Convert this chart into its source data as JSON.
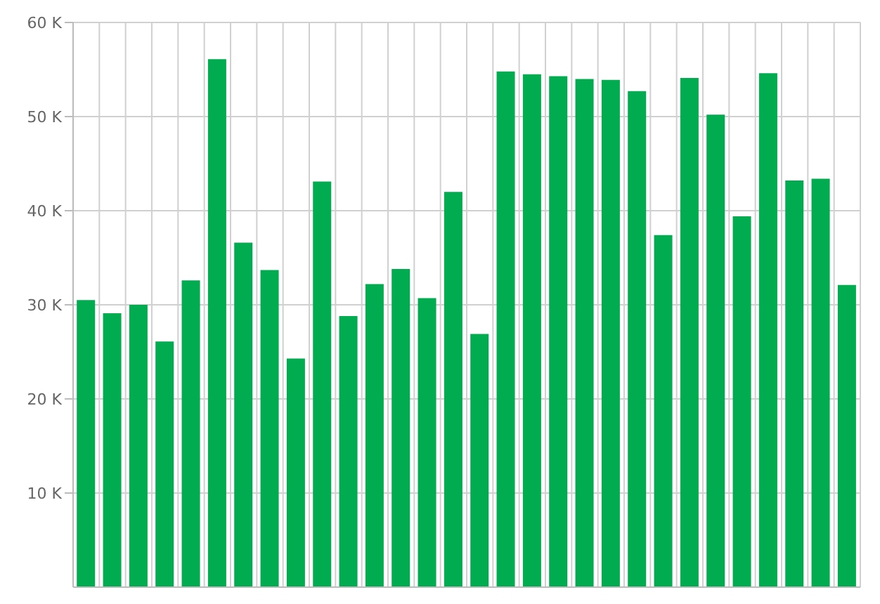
{
  "chart_data": {
    "type": "bar",
    "categories": [
      null,
      null,
      null,
      null,
      null,
      null,
      null,
      null,
      null,
      null,
      null,
      null,
      null,
      null,
      null,
      null,
      null,
      null,
      null,
      null,
      null,
      null,
      null,
      null,
      null,
      null,
      null,
      null,
      null,
      null
    ],
    "values": [
      30500,
      29100,
      30000,
      26100,
      32600,
      56100,
      36600,
      33700,
      24300,
      43100,
      28800,
      32200,
      33800,
      30700,
      42000,
      26900,
      54800,
      54500,
      54300,
      54000,
      53900,
      52700,
      37400,
      54100,
      50200,
      39400,
      54600,
      43200,
      43400,
      32100
    ],
    "color": "#00ac4f",
    "ylim": [
      0,
      60000
    ],
    "yticks": [
      {
        "value": 10000,
        "label": "10 K"
      },
      {
        "value": 20000,
        "label": "20 K"
      },
      {
        "value": 30000,
        "label": "30 K"
      },
      {
        "value": 40000,
        "label": "40 K"
      },
      {
        "value": 50000,
        "label": "50 K"
      },
      {
        "value": 60000,
        "label": "60 K"
      }
    ],
    "grid": true,
    "tick_labels": "y"
  }
}
